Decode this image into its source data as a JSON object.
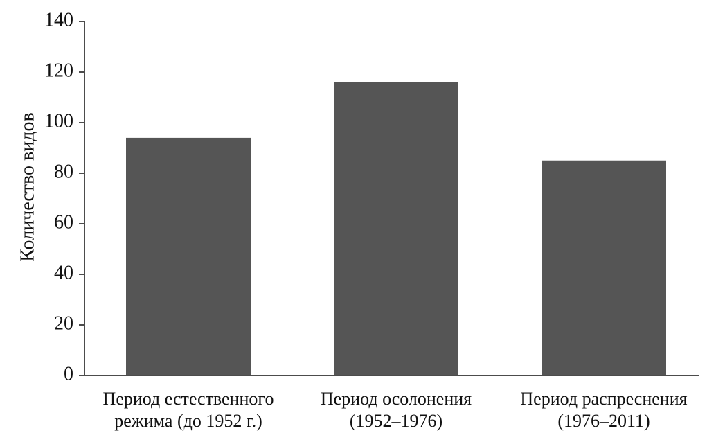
{
  "chart_data": {
    "type": "bar",
    "y_label": "Количество видов",
    "categories": [
      [
        "Период естественного",
        "режима (до 1952 г.)"
      ],
      [
        "Период осолонения",
        "(1952–1976)"
      ],
      [
        "Период распреснения",
        "(1976–2011)"
      ]
    ],
    "values": [
      94,
      116,
      85
    ],
    "color": "#555555",
    "ylim": [
      0,
      140
    ],
    "yticks": [
      0,
      20,
      40,
      60,
      80,
      100,
      120,
      140
    ],
    "grid": false
  }
}
